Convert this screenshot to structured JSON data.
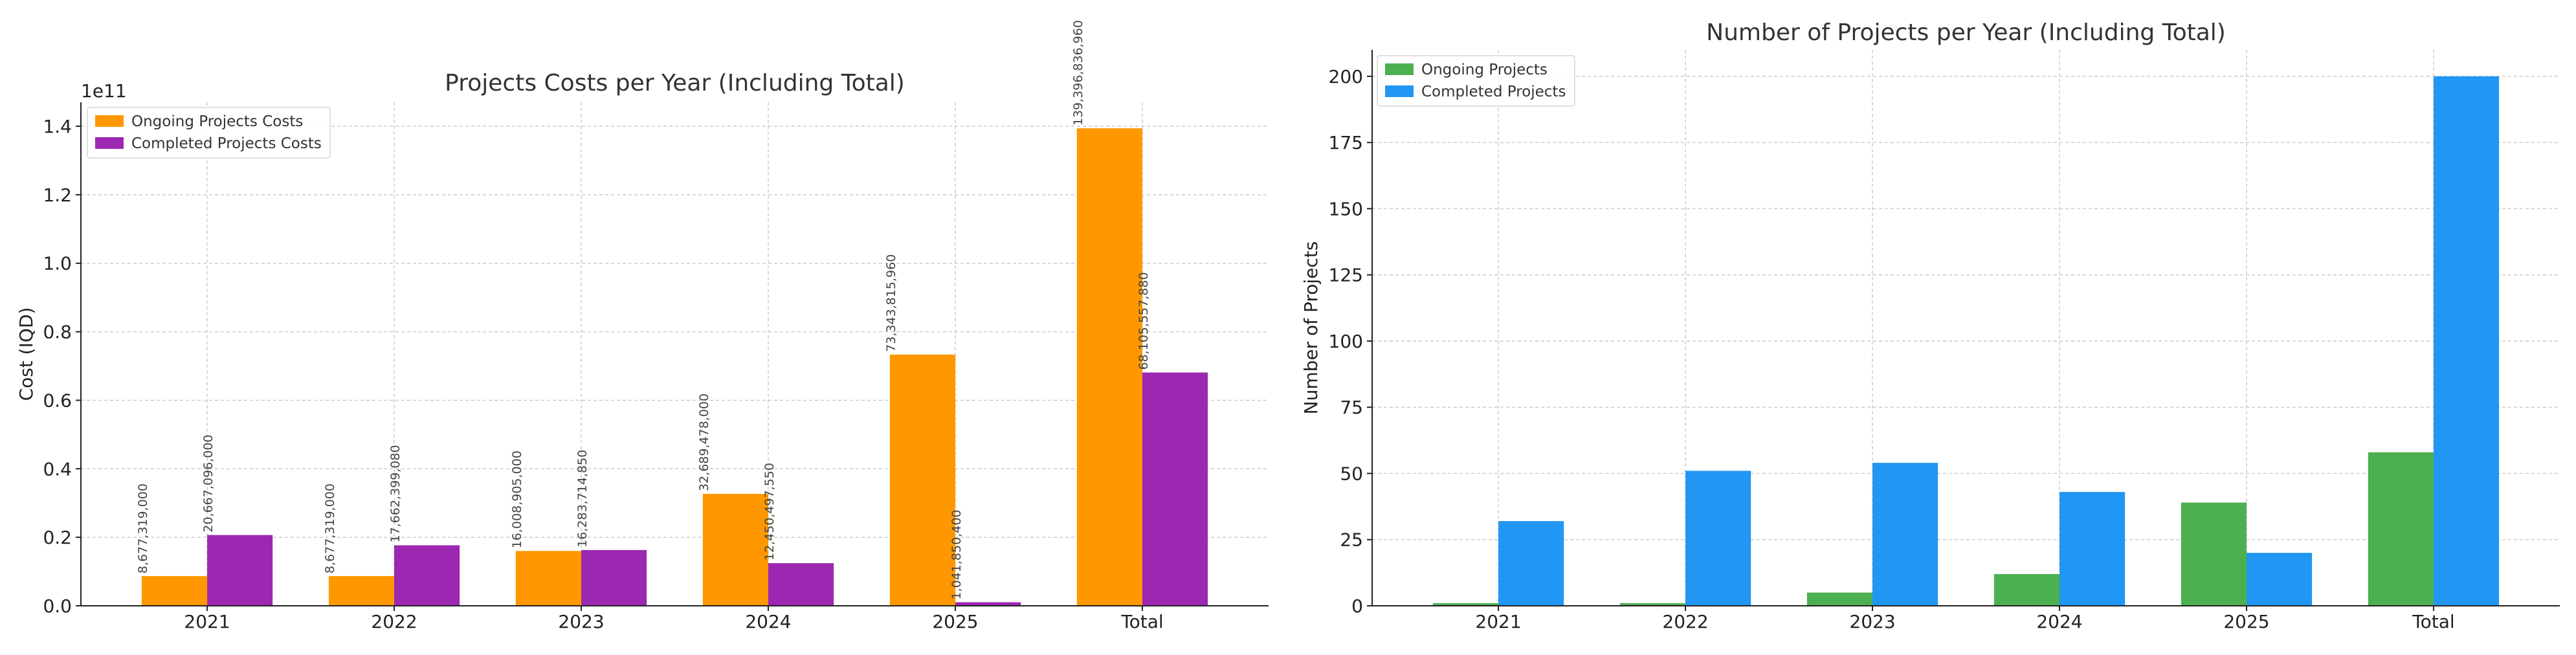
{
  "chart_data": [
    {
      "type": "bar",
      "title": "Projects Costs per Year (Including Total)",
      "xlabel": "",
      "ylabel": "Cost (IQD)",
      "scale_offset_label": "1e11",
      "categories": [
        "2021",
        "2022",
        "2023",
        "2024",
        "2025",
        "Total"
      ],
      "ylim": [
        0,
        1.47
      ],
      "yticks": [
        0.0,
        0.2,
        0.4,
        0.6,
        0.8,
        1.0,
        1.2,
        1.4
      ],
      "ytick_labels": [
        "0.0",
        "0.2",
        "0.4",
        "0.6",
        "0.8",
        "1.0",
        "1.2",
        "1.4"
      ],
      "grid": true,
      "legend_position": "top-left",
      "series": [
        {
          "name": "Ongoing Projects Costs",
          "color": "#FF9800",
          "values": [
            0.08677319,
            0.08677319,
            0.16008905,
            0.32689478,
            0.7334381596,
            1.3939683696
          ],
          "labels": [
            "8,677,319,000",
            "8,677,319,000",
            "16,008,905,000",
            "32,689,478,000",
            "73,343,815,960",
            "139,396,836,960"
          ]
        },
        {
          "name": "Completed Projects Costs",
          "color": "#9C27B0",
          "values": [
            0.20667096,
            0.1766239908,
            0.1628371485,
            0.1245049755,
            0.010418504,
            0.6810555788
          ],
          "labels": [
            "20,667,096,000",
            "17,662,399,080",
            "16,283,714,850",
            "12,450,497,550",
            "1,041,850,400",
            "68,105,557,880"
          ]
        }
      ]
    },
    {
      "type": "bar",
      "title": "Number of Projects per Year (Including Total)",
      "xlabel": "",
      "ylabel": "Number of Projects",
      "categories": [
        "2021",
        "2022",
        "2023",
        "2024",
        "2025",
        "Total"
      ],
      "ylim": [
        0,
        210
      ],
      "yticks": [
        0,
        25,
        50,
        75,
        100,
        125,
        150,
        175,
        200
      ],
      "ytick_labels": [
        "0",
        "25",
        "50",
        "75",
        "100",
        "125",
        "150",
        "175",
        "200"
      ],
      "grid": true,
      "legend_position": "top-left",
      "series": [
        {
          "name": "Ongoing Projects",
          "color": "#4CAF50",
          "values": [
            1,
            1,
            5,
            12,
            39,
            58
          ]
        },
        {
          "name": "Completed Projects",
          "color": "#2196F3",
          "values": [
            32,
            51,
            54,
            43,
            20,
            200
          ]
        }
      ]
    }
  ]
}
